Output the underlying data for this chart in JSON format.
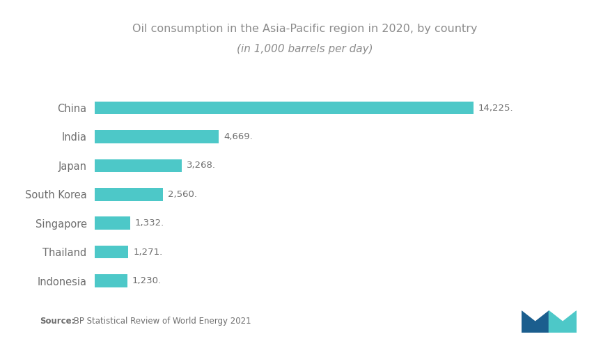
{
  "title_line1": "Oil consumption in the Asia-Pacific region in 2020, by country",
  "title_line2": "(in 1,000 barrels per day)",
  "categories": [
    "China",
    "India",
    "Japan",
    "South Korea",
    "Singapore",
    "Thailand",
    "Indonesia"
  ],
  "values": [
    14225,
    4669,
    3268,
    2560,
    1332,
    1271,
    1230
  ],
  "labels": [
    "14,225.",
    "4,669.",
    "3,268.",
    "2,560.",
    "1,332.",
    "1,271.",
    "1,230."
  ],
  "bar_color": "#4DC8C8",
  "background_color": "#FFFFFF",
  "title_color": "#8C8C8C",
  "label_color": "#6E6E6E",
  "source_bold": "Source:",
  "source_rest": " BP Statistical Review of World Energy 2021",
  "xlim": [
    0,
    16500
  ],
  "bar_height": 0.45,
  "logo_color1": "#1B5E8E",
  "logo_color2": "#4DC8C8"
}
